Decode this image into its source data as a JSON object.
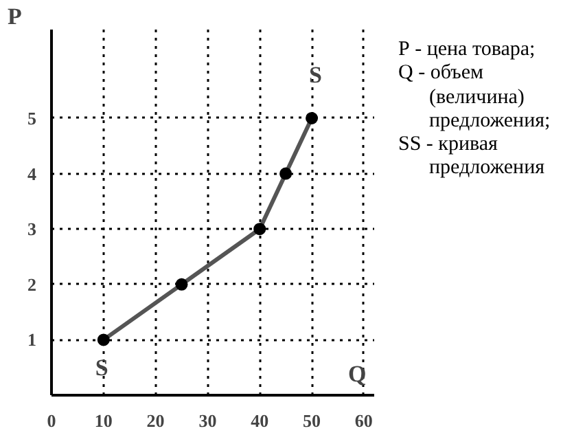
{
  "chart_data": {
    "type": "line",
    "x": [
      10,
      25,
      40,
      45,
      50
    ],
    "series": [
      {
        "color": "#555555",
        "values": [
          1,
          2,
          3,
          4,
          5
        ]
      }
    ],
    "marker": "circle",
    "xlim": [
      0,
      62
    ],
    "ylim": [
      0,
      6.6
    ],
    "xticks": [
      0,
      10,
      20,
      30,
      40,
      50,
      60
    ],
    "yticks": [
      1,
      2,
      3,
      4,
      5
    ],
    "grid": true,
    "xlabel": "Q",
    "ylabel": "P",
    "annotations": [
      {
        "text": "S",
        "x": 50,
        "y": 5
      },
      {
        "text": "S",
        "x": 10,
        "y": 1
      },
      "P - цена товара;\nQ - объем\n      (величина)\n      предложения;\nSS - кривая\n      предложения"
    ]
  }
}
